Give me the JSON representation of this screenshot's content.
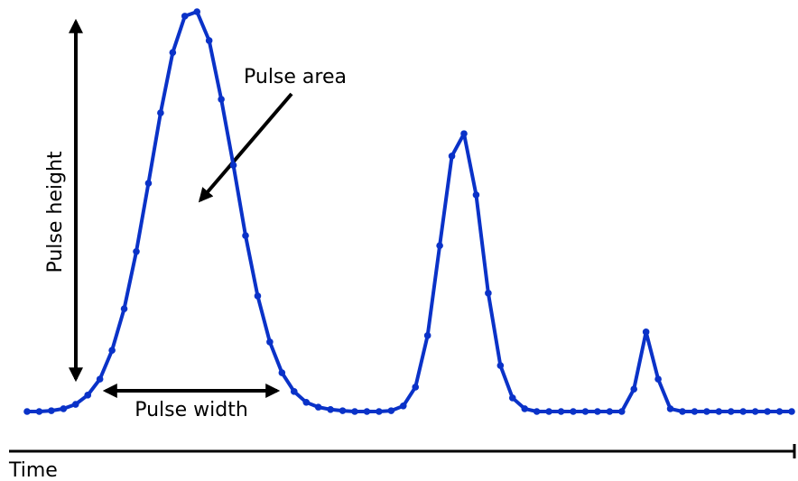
{
  "chart_data": {
    "type": "line",
    "x_label": "Time",
    "annotations": {
      "height": "Pulse height",
      "width": "Pulse width",
      "area": "Pulse area"
    },
    "x": [
      0,
      1,
      2,
      3,
      4,
      5,
      6,
      7,
      8,
      9,
      10,
      11,
      12,
      13,
      14,
      15,
      16,
      17,
      18,
      19,
      20,
      21,
      22,
      23,
      24,
      25,
      26,
      27,
      28,
      29,
      30,
      31,
      32,
      33,
      34,
      35,
      36,
      37,
      38,
      39,
      40,
      41,
      42,
      43,
      44,
      45,
      46,
      47,
      48,
      49,
      50,
      51,
      52,
      53,
      54,
      55,
      56,
      57,
      58,
      59,
      60,
      61,
      62,
      63
    ],
    "values": [
      0,
      0,
      0.2,
      0.7,
      1.8,
      4.1,
      8.1,
      15.3,
      25.7,
      40,
      57.1,
      74.7,
      89.8,
      98.9,
      100,
      92.8,
      78.1,
      61.6,
      44,
      28.9,
      17.4,
      9.7,
      5,
      2.3,
      1.1,
      0.5,
      0.2,
      0,
      0,
      0,
      0.2,
      1.4,
      6.1,
      19,
      41.5,
      63.9,
      69.5,
      54.2,
      29.6,
      11.5,
      3.4,
      0.7,
      0,
      0,
      0,
      0,
      0,
      0,
      0,
      0,
      5.6,
      19.9,
      8.1,
      0.7,
      0,
      0,
      0,
      0,
      0,
      0,
      0,
      0,
      0,
      0
    ],
    "color": "#0a32c8",
    "xlim": [
      0,
      63
    ],
    "ylim": [
      0,
      100
    ]
  }
}
